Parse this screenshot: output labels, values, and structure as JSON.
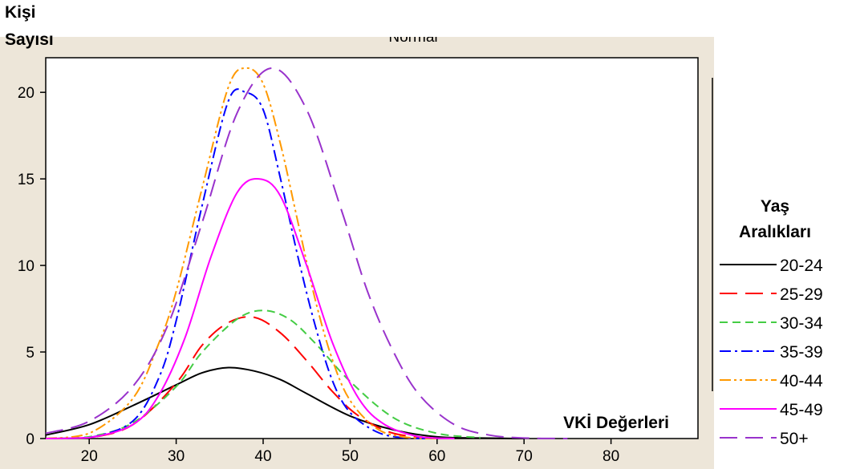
{
  "chart_data": {
    "type": "line",
    "title": "Normal",
    "ylabel_line1": "Kişi",
    "ylabel_line2": "Sayısı",
    "xlabel": "VKİ Değerleri",
    "xlim": [
      15,
      90
    ],
    "ylim": [
      0,
      22
    ],
    "xticks": [
      20,
      30,
      40,
      50,
      60,
      70,
      80
    ],
    "yticks": [
      0,
      5,
      10,
      15,
      20
    ],
    "grid": false,
    "legend_title_line1": "Yaş",
    "legend_title_line2": "Aralıkları",
    "legend_position": "right",
    "series": [
      {
        "name": "20-24",
        "color": "#000000",
        "dash": "solid",
        "x": [
          15,
          20,
          25,
          30,
          33,
          36,
          39,
          42,
          45,
          50,
          55,
          60,
          65,
          70
        ],
        "y": [
          0.2,
          0.8,
          1.9,
          3.1,
          3.8,
          4.1,
          3.9,
          3.4,
          2.6,
          1.3,
          0.5,
          0.1,
          0.03,
          0
        ]
      },
      {
        "name": "25-29",
        "color": "#ff0000",
        "dash": "longdash",
        "x": [
          15,
          20,
          25,
          30,
          33,
          36,
          39,
          42,
          45,
          48,
          51,
          55,
          60
        ],
        "y": [
          0,
          0.05,
          0.8,
          3.2,
          5.4,
          6.7,
          7.0,
          6.1,
          4.5,
          2.7,
          1.3,
          0.3,
          0.02
        ]
      },
      {
        "name": "30-34",
        "color": "#44cc44",
        "dash": "dash",
        "x": [
          15,
          20,
          25,
          30,
          33,
          37,
          40,
          43,
          46,
          50,
          55,
          60,
          65
        ],
        "y": [
          0,
          0.1,
          0.9,
          3.0,
          5.0,
          6.9,
          7.4,
          6.9,
          5.5,
          3.3,
          1.2,
          0.3,
          0.05
        ]
      },
      {
        "name": "35-39",
        "color": "#0000ff",
        "dash": "dashdot",
        "x": [
          15,
          20,
          25,
          28,
          30,
          33,
          36,
          38,
          40,
          42,
          44,
          46,
          48,
          50,
          53,
          56,
          60
        ],
        "y": [
          0,
          0.05,
          1.0,
          3.5,
          6.8,
          13.5,
          19.5,
          20.0,
          19.0,
          15.0,
          10.5,
          6.5,
          3.3,
          1.5,
          0.4,
          0.05,
          0
        ]
      },
      {
        "name": "40-44",
        "color": "#ff9900",
        "dash": "dashdotdot",
        "x": [
          15,
          20,
          25,
          28,
          30,
          33,
          36,
          38,
          40,
          42,
          44,
          46,
          48,
          50,
          53,
          56,
          60
        ],
        "y": [
          0,
          0.3,
          2.3,
          5.5,
          8.5,
          14.5,
          20.3,
          21.4,
          20.5,
          17.0,
          12.5,
          8.0,
          4.5,
          2.2,
          0.6,
          0.1,
          0
        ]
      },
      {
        "name": "45-49",
        "color": "#ff00ff",
        "dash": "solid",
        "x": [
          15,
          20,
          25,
          28,
          31,
          34,
          37,
          39.5,
          42,
          45,
          48,
          51,
          54,
          58,
          62
        ],
        "y": [
          0,
          0.05,
          0.8,
          2.5,
          5.8,
          10.5,
          14.2,
          15.0,
          14.0,
          10.0,
          5.5,
          2.3,
          0.8,
          0.1,
          0
        ]
      },
      {
        "name": "50+",
        "color": "#9933cc",
        "dash": "longdash",
        "x": [
          15,
          20,
          25,
          29,
          33,
          37,
          41,
          45,
          49,
          52,
          55,
          58,
          62,
          66,
          70,
          75
        ],
        "y": [
          0.3,
          1.0,
          3.0,
          6.5,
          12.5,
          18.8,
          21.4,
          19.0,
          13.2,
          8.5,
          5.0,
          2.5,
          0.8,
          0.2,
          0.03,
          0
        ]
      }
    ]
  }
}
